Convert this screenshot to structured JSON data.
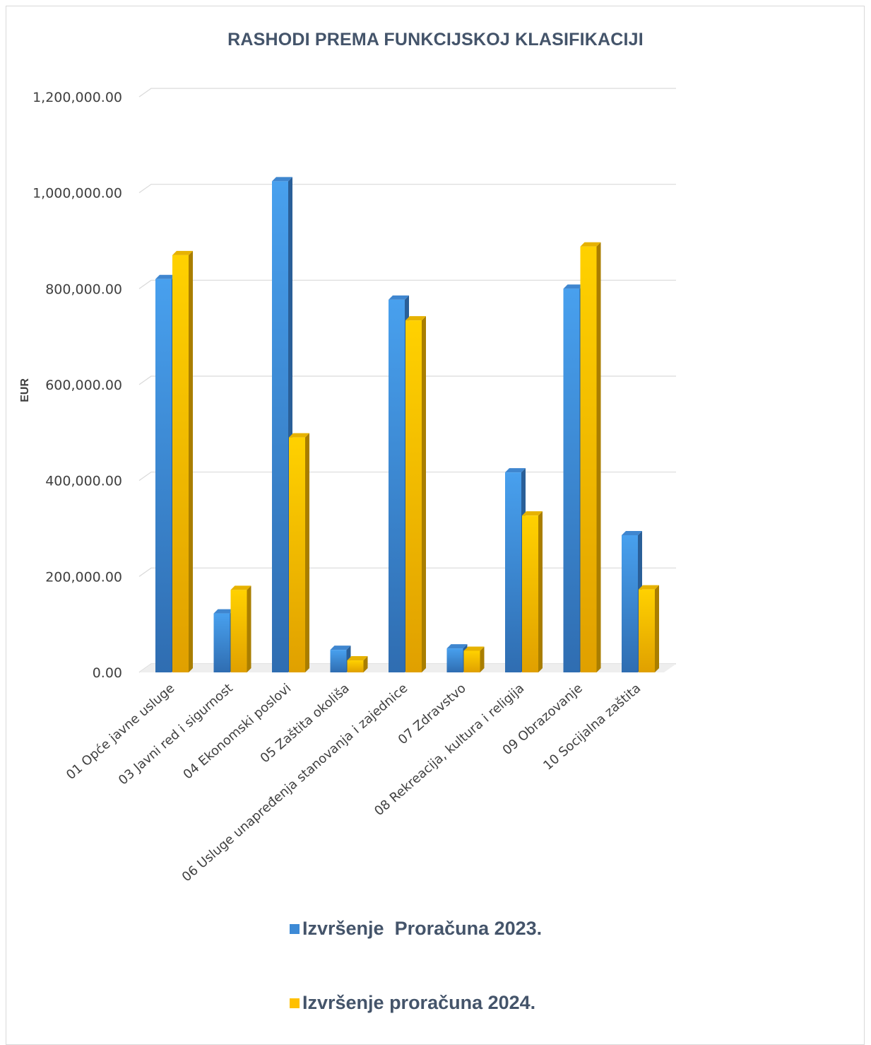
{
  "chart_data": {
    "type": "bar",
    "title": "RASHODI PREMA FUNKCIJSKOJ KLASIFIKACIJI",
    "xlabel": "",
    "ylabel": "EUR",
    "ylim": [
      0,
      1200000
    ],
    "yticks": [
      "0.00",
      "200,000.00",
      "400,000.00",
      "600,000.00",
      "800,000.00",
      "1,000,000.00",
      "1,200,000.00"
    ],
    "ytick_values": [
      0,
      200000,
      400000,
      600000,
      800000,
      1000000,
      1200000
    ],
    "grid": true,
    "legend_position": "bottom",
    "categories": [
      "01 Opće javne usluge",
      "03 Javni red i sigurnost",
      "04 Ekonomski poslovi",
      "05 Zaštita okoliša",
      "06 Usluge unapređenja stanovanja i zajednice",
      "07 Zdravstvo",
      "08 Rekreacija, kultura i religija",
      "09 Obrazovanje",
      "10 Socijalna zaštita"
    ],
    "series": [
      {
        "name": "Izvršenje  Proračuna 2023.",
        "color": "#4a9be5",
        "values": [
          820000,
          123000,
          1024000,
          47000,
          777000,
          50000,
          417000,
          800000,
          286000
        ]
      },
      {
        "name": "Izvršenje proračuna 2024.",
        "color": "#ffc000",
        "values": [
          870000,
          172000,
          490000,
          25000,
          734000,
          45000,
          327000,
          888000,
          173000
        ]
      }
    ]
  }
}
